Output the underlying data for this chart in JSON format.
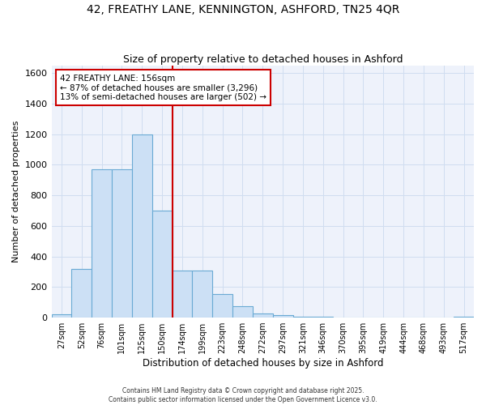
{
  "title_line1": "42, FREATHY LANE, KENNINGTON, ASHFORD, TN25 4QR",
  "title_line2": "Size of property relative to detached houses in Ashford",
  "xlabel": "Distribution of detached houses by size in Ashford",
  "ylabel": "Number of detached properties",
  "x_labels": [
    "27sqm",
    "52sqm",
    "76sqm",
    "101sqm",
    "125sqm",
    "150sqm",
    "174sqm",
    "199sqm",
    "223sqm",
    "248sqm",
    "272sqm",
    "297sqm",
    "321sqm",
    "346sqm",
    "370sqm",
    "395sqm",
    "419sqm",
    "444sqm",
    "468sqm",
    "493sqm",
    "517sqm"
  ],
  "bar_heights": [
    20,
    320,
    970,
    970,
    1200,
    700,
    310,
    310,
    155,
    75,
    25,
    15,
    5,
    5,
    0,
    0,
    0,
    0,
    0,
    0,
    8
  ],
  "bar_color": "#cce0f5",
  "bar_edge_color": "#6aaad4",
  "vline_x_index": 5.5,
  "vline_color": "#cc0000",
  "annotation_text": "42 FREATHY LANE: 156sqm\n← 87% of detached houses are smaller (3,296)\n13% of semi-detached houses are larger (502) →",
  "annotation_box_color": "#ffffff",
  "annotation_box_edge": "#cc0000",
  "ylim": [
    0,
    1650
  ],
  "yticks": [
    0,
    200,
    400,
    600,
    800,
    1000,
    1200,
    1400,
    1600
  ],
  "grid_color": "#d0ddf0",
  "bg_color": "#eef2fb",
  "fig_bg_color": "#ffffff",
  "footnote1": "Contains HM Land Registry data © Crown copyright and database right 2025.",
  "footnote2": "Contains public sector information licensed under the Open Government Licence v3.0."
}
